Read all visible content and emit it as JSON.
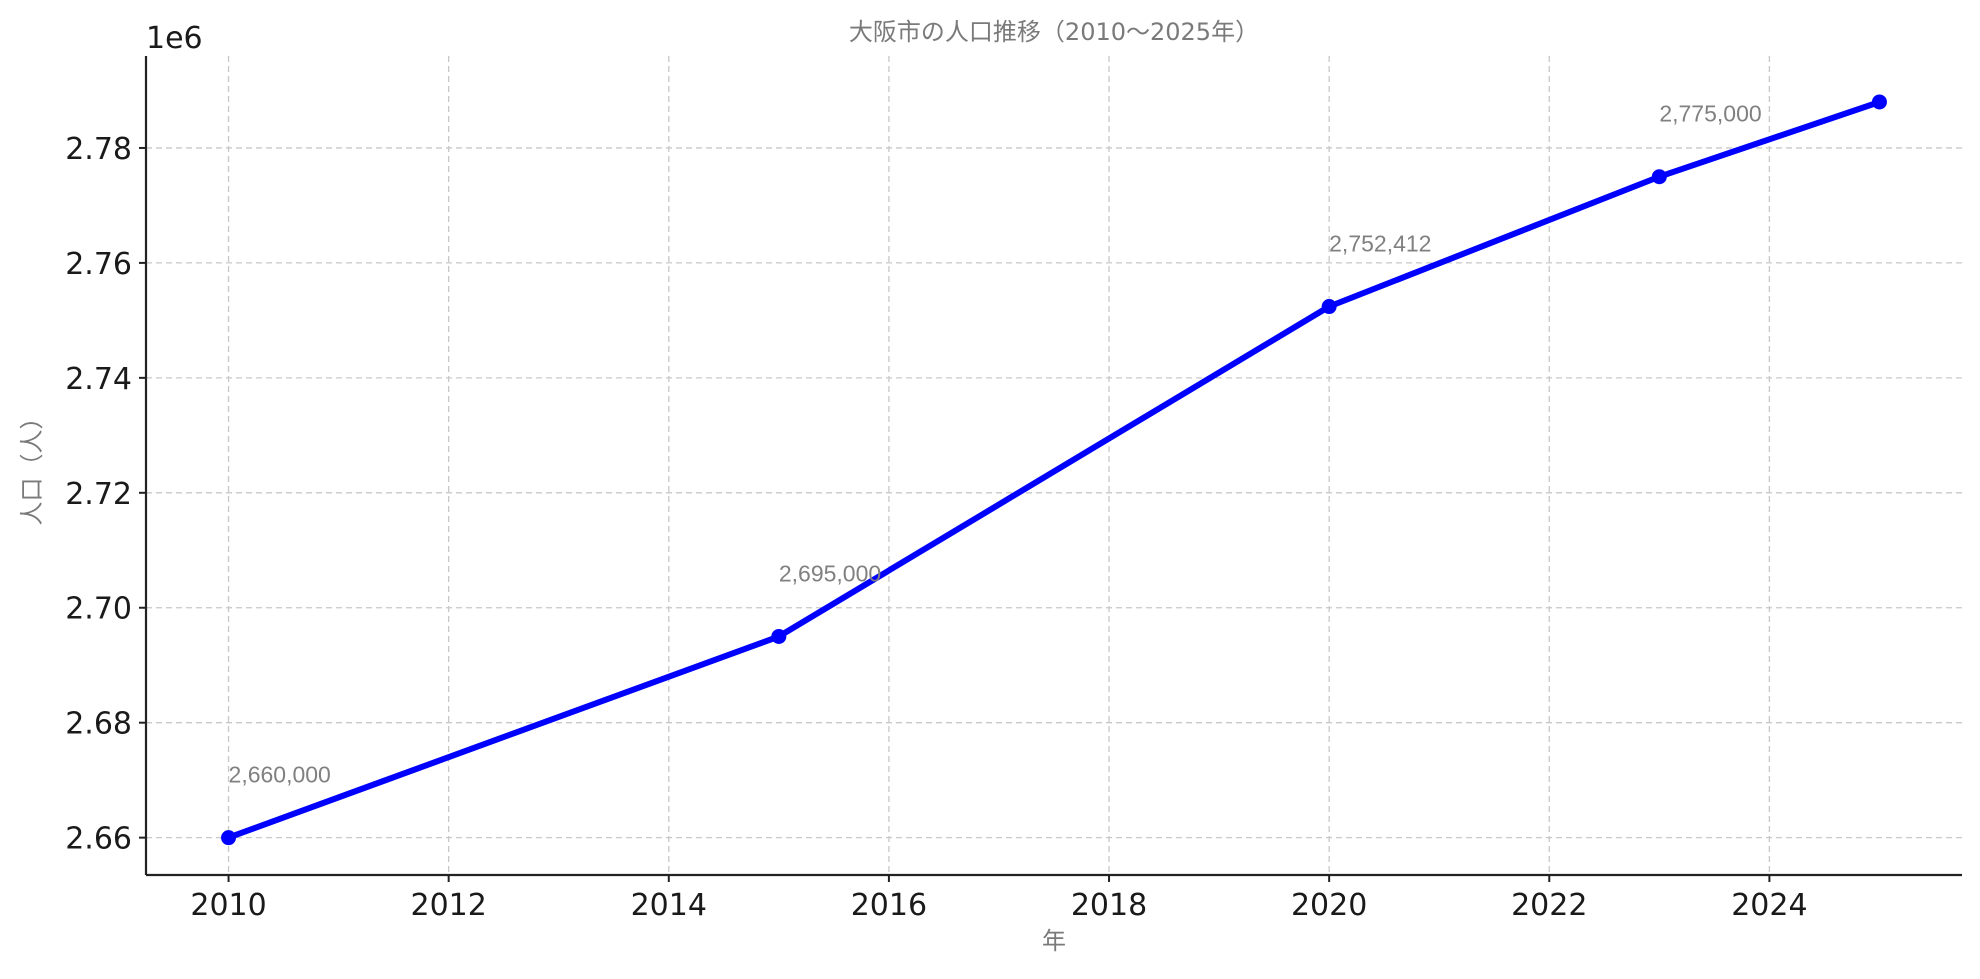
{
  "chart_data": {
    "type": "line",
    "title": "大阪市の人口推移（2010〜2025年）",
    "xlabel": "年",
    "ylabel": "人口（人）",
    "y_offset_label": "1e6",
    "xlim": [
      2009.25,
      2025.75
    ],
    "ylim": [
      2653500,
      2796000
    ],
    "x_ticks": [
      2010,
      2012,
      2014,
      2016,
      2018,
      2020,
      2022,
      2024
    ],
    "x_tick_labels": [
      "2010",
      "2012",
      "2014",
      "2016",
      "2018",
      "2020",
      "2022",
      "2024"
    ],
    "y_ticks": [
      2660000,
      2680000,
      2700000,
      2720000,
      2740000,
      2760000,
      2780000
    ],
    "y_tick_labels": [
      "2.66",
      "2.68",
      "2.70",
      "2.72",
      "2.74",
      "2.76",
      "2.78"
    ],
    "grid": true,
    "series": [
      {
        "color": "#0000ff",
        "x": [
          2010,
          2015,
          2020,
          2023,
          2025
        ],
        "values": [
          2660000,
          2695000,
          2752412,
          2775000,
          2788000
        ],
        "data_labels": [
          "2,660,000",
          "2,695,000",
          "2,752,412",
          "2,775,000",
          ""
        ]
      }
    ],
    "colors": {
      "line": "#0000ff",
      "grid": "#c8c8c8",
      "axis": "#222222",
      "text": "#7a7a7a"
    }
  }
}
